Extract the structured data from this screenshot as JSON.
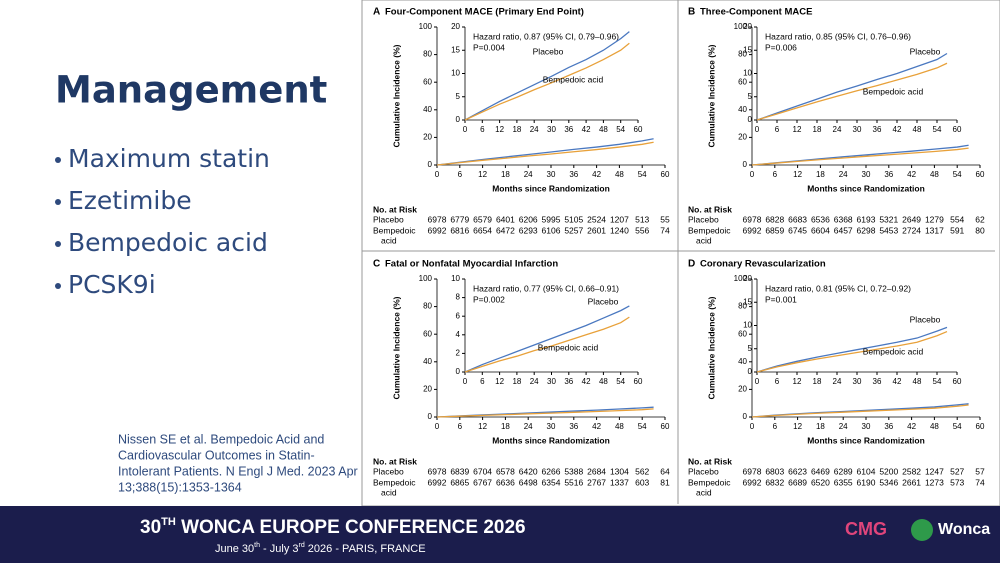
{
  "slide": {
    "title": "Management",
    "bullets": [
      "Maximum statin",
      "Ezetimibe",
      "Bempedoic acid",
      "PCSK9i"
    ],
    "citation": [
      "Nissen SE et al. Bempedoic Acid and",
      "Cardiovascular Outcomes in Statin-",
      "Intolerant Patients. N Engl J Med. 2023 Apr",
      "13;388(15):1353-1364"
    ]
  },
  "figure": {
    "x_label": "Months since Randomization",
    "y_label": "Cumulative Incidence (%)",
    "risk_header": "No. at Risk",
    "risk_rows": [
      "Placebo",
      "Bempedoic",
      "acid"
    ],
    "x": [
      0,
      6,
      12,
      18,
      24,
      30,
      36,
      42,
      48,
      54,
      57
    ],
    "xlim": [
      0,
      60
    ],
    "xticks": [
      0,
      6,
      12,
      18,
      24,
      30,
      36,
      42,
      48,
      54,
      60
    ],
    "main_ylim": [
      0,
      100
    ],
    "main_yticks": [
      0,
      20,
      40,
      60,
      80,
      100
    ],
    "panels": [
      {
        "letter": "A",
        "title": "Four-Component MACE (Primary End Point)",
        "hazard": "Hazard ratio, 0.87 (95% CI, 0.79–0.96)",
        "p": "P=0.004",
        "inset_ylim": [
          0,
          20
        ],
        "inset_yticks": [
          0,
          5,
          10,
          15,
          20
        ],
        "series": [
          {
            "name": "Placebo",
            "color": "#4a78c0",
            "values": [
              0,
              2,
              4,
              5.8,
              7.6,
              9.4,
              11.3,
              13,
              15,
              17.5,
              19
            ]
          },
          {
            "name": "Bempedoic acid",
            "color": "#e8a13a",
            "values": [
              0,
              1.7,
              3.4,
              4.9,
              6.5,
              8,
              9.6,
              11.2,
              13,
              15,
              16.5
            ]
          }
        ],
        "risk": [
          [
            6978,
            6779,
            6579,
            6401,
            6206,
            5995,
            5105,
            2524,
            1207,
            513,
            55
          ],
          [
            6992,
            6816,
            6654,
            6472,
            6293,
            6106,
            5257,
            2601,
            1240,
            556,
            74
          ]
        ]
      },
      {
        "letter": "B",
        "title": "Three-Component MACE",
        "hazard": "Hazard ratio, 0.85 (95% CI, 0.76–0.96)",
        "p": "P=0.006",
        "inset_ylim": [
          0,
          20
        ],
        "inset_yticks": [
          0,
          5,
          10,
          15,
          20
        ],
        "series": [
          {
            "name": "Placebo",
            "color": "#4a78c0",
            "values": [
              0,
              1.5,
              3,
              4.5,
              6,
              7.3,
              8.7,
              10,
              11.5,
              13,
              14.3
            ]
          },
          {
            "name": "Bempedoic acid",
            "color": "#e8a13a",
            "values": [
              0,
              1.3,
              2.6,
              3.9,
              5.1,
              6.3,
              7.4,
              8.6,
              9.8,
              11.2,
              12.2
            ]
          }
        ],
        "risk": [
          [
            6978,
            6828,
            6683,
            6536,
            6368,
            6193,
            5321,
            2649,
            1279,
            554,
            62
          ],
          [
            6992,
            6859,
            6745,
            6604,
            6457,
            6298,
            5453,
            2724,
            1317,
            591,
            80
          ]
        ]
      },
      {
        "letter": "C",
        "title": "Fatal or Nonfatal Myocardial Infarction",
        "hazard": "Hazard ratio, 0.77 (95% CI, 0.66–0.91)",
        "p": "P=0.002",
        "inset_ylim": [
          0,
          10
        ],
        "inset_yticks": [
          0,
          2,
          4,
          6,
          8,
          10
        ],
        "series": [
          {
            "name": "Placebo",
            "color": "#4a78c0",
            "values": [
              0,
              0.8,
              1.5,
              2.2,
              2.9,
              3.6,
              4.3,
              5,
              5.8,
              6.6,
              7.1
            ]
          },
          {
            "name": "Bempedoic acid",
            "color": "#e8a13a",
            "values": [
              0,
              0.6,
              1.2,
              1.7,
              2.3,
              2.8,
              3.4,
              4,
              4.6,
              5.3,
              5.9
            ]
          }
        ],
        "risk": [
          [
            6978,
            6839,
            6704,
            6578,
            6420,
            6266,
            5388,
            2684,
            1304,
            562,
            64
          ],
          [
            6992,
            6865,
            6767,
            6636,
            6498,
            6354,
            5516,
            2767,
            1337,
            603,
            81
          ]
        ]
      },
      {
        "letter": "D",
        "title": "Coronary Revascularization",
        "hazard": "Hazard ratio, 0.81 (95% CI, 0.72–0.92)",
        "p": "P=0.001",
        "inset_ylim": [
          0,
          20
        ],
        "inset_yticks": [
          0,
          5,
          10,
          15,
          20
        ],
        "series": [
          {
            "name": "Placebo",
            "color": "#4a78c0",
            "values": [
              0,
              1.3,
              2.3,
              3.2,
              4,
              4.8,
              5.6,
              6.4,
              7.3,
              8.8,
              9.6
            ]
          },
          {
            "name": "Bempedoic acid",
            "color": "#e8a13a",
            "values": [
              0,
              1.1,
              2,
              2.8,
              3.5,
              4.2,
              4.9,
              5.6,
              6.4,
              7.8,
              8.7
            ]
          }
        ],
        "risk": [
          [
            6978,
            6803,
            6623,
            6469,
            6289,
            6104,
            5200,
            2582,
            1247,
            527,
            57
          ],
          [
            6992,
            6832,
            6689,
            6520,
            6355,
            6190,
            5346,
            2661,
            1273,
            573,
            74
          ]
        ]
      }
    ]
  },
  "footer": {
    "conf_a": "30",
    "conf_sup": "TH",
    "conf_b": " WONCA EUROPE CONFERENCE 2026",
    "date_a": "June 30",
    "date_sup1": "th",
    "date_b": " - July 3",
    "date_sup2": "rd",
    "date_c": "  2026 - PARIS, FRANCE",
    "logo1": "CMG",
    "logo2": "Wonca"
  }
}
